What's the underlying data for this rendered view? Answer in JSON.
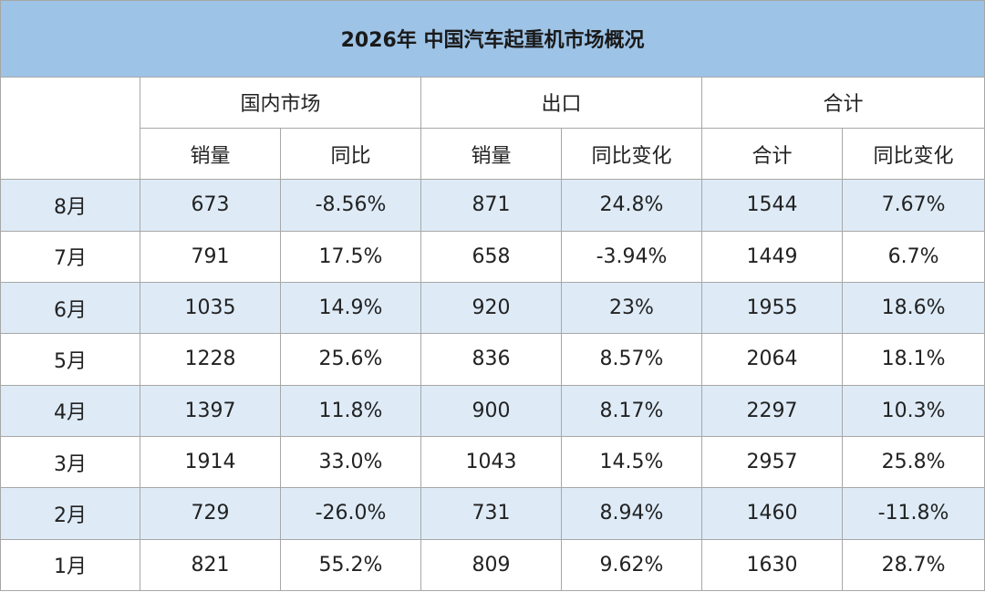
{
  "chart_data": {
    "type": "table",
    "title": "2026年 中国汽车起重机市场概况",
    "group_headers": [
      "国内市场",
      "出口",
      "合计"
    ],
    "column_headers": [
      "销量",
      "同比",
      "销量",
      "同比变化",
      "合计",
      "同比变化"
    ],
    "rows": [
      {
        "month": "8月",
        "cells": [
          "673",
          "-8.56%",
          "871",
          "24.8%",
          "1544",
          "7.67%"
        ]
      },
      {
        "month": "7月",
        "cells": [
          "791",
          "17.5%",
          "658",
          "-3.94%",
          "1449",
          "6.7%"
        ]
      },
      {
        "month": "6月",
        "cells": [
          "1035",
          "14.9%",
          "920",
          "23%",
          "1955",
          "18.6%"
        ]
      },
      {
        "month": "5月",
        "cells": [
          "1228",
          "25.6%",
          "836",
          "8.57%",
          "2064",
          "18.1%"
        ]
      },
      {
        "month": "4月",
        "cells": [
          "1397",
          "11.8%",
          "900",
          "8.17%",
          "2297",
          "10.3%"
        ]
      },
      {
        "month": "3月",
        "cells": [
          "1914",
          "33.0%",
          "1043",
          "14.5%",
          "2957",
          "25.8%"
        ]
      },
      {
        "month": "2月",
        "cells": [
          "729",
          "-26.0%",
          "731",
          "8.94%",
          "1460",
          "-11.8%"
        ]
      },
      {
        "month": "1月",
        "cells": [
          "821",
          "55.2%",
          "809",
          "9.62%",
          "1630",
          "28.7%"
        ]
      }
    ]
  },
  "colors": {
    "title_background": "#9dc3e6",
    "alternate_row_background": "#deebf7",
    "border": "#a7a7a7"
  }
}
